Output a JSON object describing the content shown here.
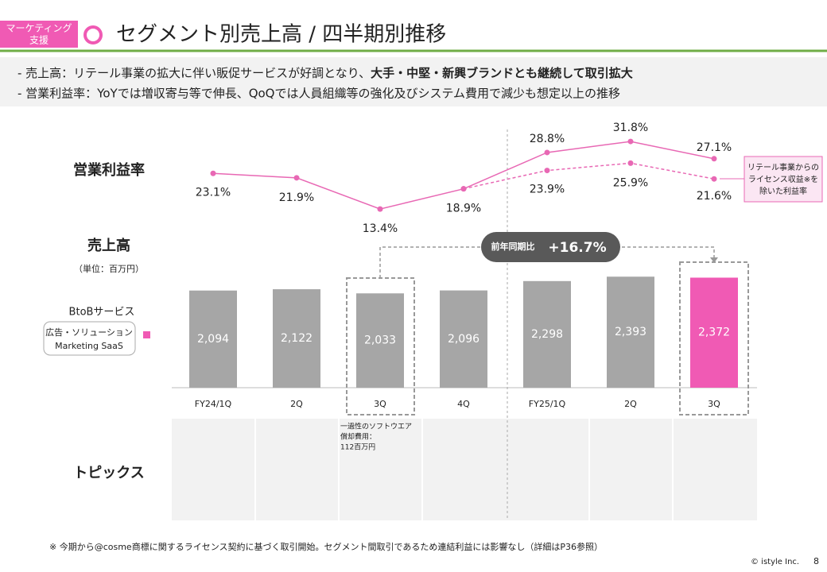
{
  "header": {
    "badge": [
      "マーケティング",
      "支援"
    ],
    "title": "セグメント別売上高 / 四半期別推移"
  },
  "bullets": [
    [
      "- 売上高：リテール事業の拡大に伴い販促サービスが好調となり、",
      "大手・中堅・新興ブランドとも継続して取引拡大"
    ],
    [
      "- 営業利益率：YoYでは増収寄与等で伸長、QoQでは人員組織等の強化及びシステム費用で減少も想定以上の推移"
    ]
  ],
  "chart_data": {
    "type": "bar",
    "categories": [
      "FY24/1Q",
      "2Q",
      "3Q",
      "4Q",
      "FY25/1Q",
      "2Q",
      "3Q"
    ],
    "sales_label": "売上高",
    "unit": "（単位：百万円）",
    "group_label": "BtoBサービス",
    "series": [
      {
        "name": [
          "広告・ソリューション",
          "Marketing SaaS"
        ],
        "color": "#a6a6a6",
        "colors": [
          "#a6a6a6",
          "#a6a6a6",
          "#a6a6a6",
          "#a6a6a6",
          "#a6a6a6",
          "#a6a6a6",
          "#f05ab4"
        ],
        "legend_color": "#f05ab4",
        "values": [
          2094,
          2122,
          2033,
          2096,
          2298,
          2393,
          2372
        ],
        "value_labels": [
          "2,094",
          "2,122",
          "2,033",
          "2,096",
          "2,298",
          "2,393",
          "2,372"
        ]
      },
      {
        "name": "営業利益率",
        "type": "line",
        "color": "#e868b4",
        "values": [
          23.1,
          21.9,
          13.4,
          18.9,
          28.8,
          31.8,
          27.1
        ],
        "value_labels": [
          "23.1%",
          "21.9%",
          "13.4%",
          "18.9%",
          "28.8%",
          "31.8%",
          "27.1%"
        ]
      },
      {
        "name": [
          "リテール事業からの",
          "ライセンス収益※を",
          "除いた利益率"
        ],
        "type": "line",
        "dashed": true,
        "color": "#e868b4",
        "values": [
          null,
          null,
          null,
          18.9,
          23.9,
          25.9,
          21.6
        ],
        "value_labels": [
          null,
          null,
          null,
          null,
          "23.9%",
          "25.9%",
          "21.6%"
        ]
      }
    ],
    "yoy": {
      "label": "前年同期比",
      "value": 16.7,
      "value_label": "+16.7%"
    },
    "annotation": [
      "一過性のソフトウエア",
      "償却費用：",
      "112百万円"
    ],
    "topics_label": "トピックス"
  },
  "footnote": "※ 今期から@cosme商標に関するライセンス契約に基づく取引開始。セグメント間取引であるため連結利益には影響なし（詳細はP36参照）",
  "copyright": "© istyle Inc.",
  "page": 8
}
